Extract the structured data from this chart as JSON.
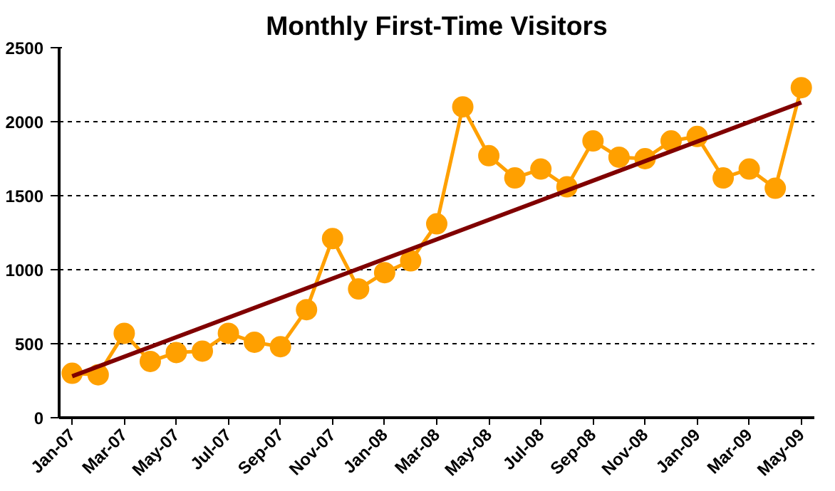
{
  "chart_data": {
    "type": "line",
    "title": "Monthly First-Time Visitors",
    "categories": [
      "Jan-07",
      null,
      "Mar-07",
      null,
      "May-07",
      null,
      "Jul-07",
      null,
      "Sep-07",
      null,
      "Nov-07",
      null,
      "Jan-08",
      null,
      "Mar-08",
      null,
      "May-08",
      null,
      "Jul-08",
      null,
      "Sep-08",
      null,
      "Nov-08",
      null,
      "Jan-09",
      null,
      "Mar-09",
      null,
      "May-09"
    ],
    "series": [
      {
        "color": "#ffa000",
        "marker": "circle",
        "values": [
          300,
          290,
          570,
          380,
          440,
          450,
          570,
          510,
          480,
          730,
          1210,
          870,
          980,
          1060,
          1310,
          2100,
          1770,
          1620,
          1680,
          1560,
          1870,
          1760,
          1750,
          1870,
          1900,
          1620,
          1680,
          1550,
          2230
        ]
      },
      {
        "type": "line",
        "color": "#800000",
        "marker": "none",
        "x": [
          "Jan-07",
          "May-09"
        ],
        "values": [
          280,
          2130
        ]
      }
    ],
    "ylim": [
      0,
      2500
    ],
    "yticks": [
      0,
      500,
      1000,
      1500,
      2000,
      2500
    ],
    "grid": "y"
  }
}
